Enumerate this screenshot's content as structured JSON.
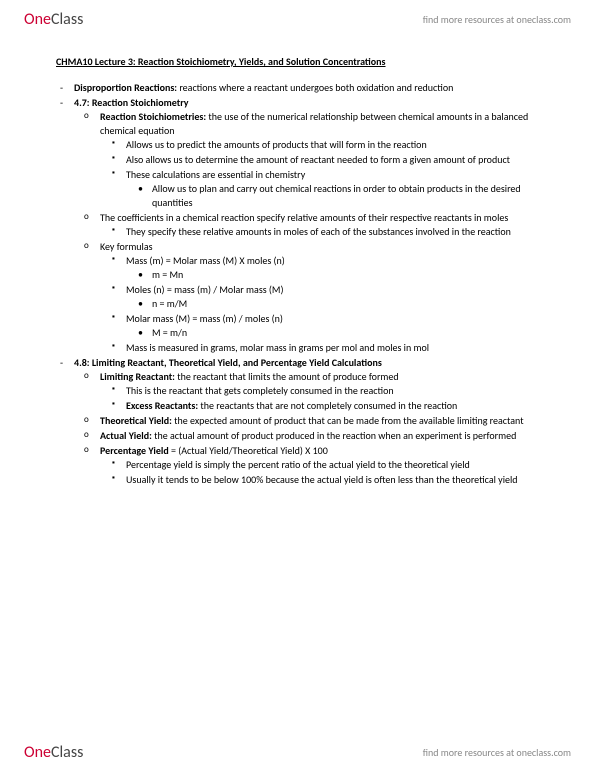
{
  "header": {
    "logo_one": "One",
    "logo_class": "Class",
    "link": "find more resources at oneclass.com"
  },
  "title": "CHMA10 Lecture 3: Reaction Stoichiometry, Yields, and Solution Concentrations",
  "l1": {
    "disprop_b": "Disproportion Reactions:",
    "disprop_t": " reactions where a reactant undergoes both oxidation and reduction",
    "s47": "4.7: Reaction Stoichiometry",
    "s48": "4.8: Limiting Reactant, Theoretical Yield, and Percentage Yield Calculations"
  },
  "s47": {
    "rs_b": "Reaction Stoichiometries:",
    "rs_t": " the use of the numerical relationship between chemical amounts in a balanced chemical equation",
    "rs_1": "Allows us to predict the amounts of products that will form in the reaction",
    "rs_2": "Also allows us to determine the amount of reactant needed to form a given amount of product",
    "rs_3": "These calculations are essential in chemistry",
    "rs_3a": "Allow us to plan and carry out chemical reactions in order to obtain products in the desired quantities",
    "coef": "The coefficients in a chemical reaction specify relative amounts of their respective reactants in moles",
    "coef_1": "They specify these relative amounts in moles of each of the substances involved in the reaction",
    "kf": "Key formulas",
    "kf1": "Mass (m)  = Molar mass (M) X moles (n)",
    "kf1a": "m = Mn",
    "kf2": "Moles (n) = mass (m) / Molar mass (M)",
    "kf2a": "n = m/M",
    "kf3": "Molar mass (M) = mass (m) / moles (n)",
    "kf3a": "M = m/n",
    "kf4": "Mass is measured in grams, molar mass in grams per mol and moles in mol"
  },
  "s48": {
    "lr_b": "Limiting Reactant:",
    "lr_t": " the reactant that limits the amount of produce formed",
    "lr_1": "This is the reactant that gets completely consumed in the reaction",
    "er_b": "Excess Reactants:",
    "er_t": " the reactants that are not completely consumed in the reaction",
    "ty_b": "Theoretical Yield:",
    "ty_t": " the expected amount of product that can be made from the available limiting reactant",
    "ay_b": "Actual Yield:",
    "ay_t": " the actual amount of product produced in the reaction when an experiment is performed",
    "py_b": "Percentage Yield",
    "py_t": "  = (Actual Yield/Theoretical Yield) X 100",
    "py_1": "Percentage yield is simply the percent ratio of the actual yield to the theoretical yield",
    "py_2": "Usually it tends to be below 100% because the actual yield is often less than the theoretical yield"
  },
  "footer": {
    "logo_one": "One",
    "logo_class": "Class",
    "link": "find more resources at oneclass.com"
  }
}
